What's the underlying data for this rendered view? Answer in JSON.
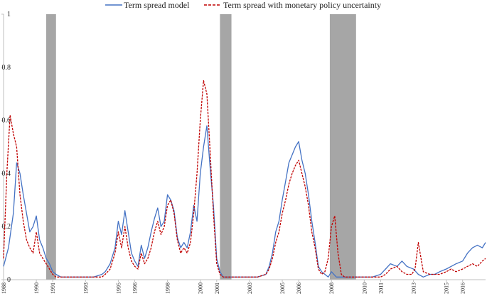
{
  "chart_data": {
    "type": "line",
    "title": "",
    "xlabel": "",
    "ylabel": "",
    "xlim": [
      1988.0,
      2017.4
    ],
    "ylim": [
      0,
      1
    ],
    "y_ticks": [
      {
        "value": 0,
        "label": "0"
      },
      {
        "value": 0.2,
        "label": "0.2"
      },
      {
        "value": 0.4,
        "label": "0.4"
      },
      {
        "value": 0.6,
        "label": "0.6"
      },
      {
        "value": 0.8,
        "label": "0.8"
      },
      {
        "value": 1,
        "label": "1"
      }
    ],
    "x_ticks": [
      {
        "value": 1988.0,
        "label": "1988"
      },
      {
        "value": 1990.0,
        "label": "1990"
      },
      {
        "value": 1991.0,
        "label": "1991"
      },
      {
        "value": 1993.0,
        "label": "1993"
      },
      {
        "value": 1995.0,
        "label": "1995"
      },
      {
        "value": 1996.0,
        "label": "1996"
      },
      {
        "value": 1998.0,
        "label": "1998"
      },
      {
        "value": 2000.0,
        "label": "2000"
      },
      {
        "value": 2001.0,
        "label": "2001"
      },
      {
        "value": 2003.0,
        "label": "2003"
      },
      {
        "value": 2005.0,
        "label": "2005"
      },
      {
        "value": 2006.0,
        "label": "2006"
      },
      {
        "value": 2008.0,
        "label": "2008"
      },
      {
        "value": 2010.0,
        "label": "2010"
      },
      {
        "value": 2011.0,
        "label": "2011"
      },
      {
        "value": 2013.0,
        "label": "2013"
      },
      {
        "value": 2015.0,
        "label": "2015"
      },
      {
        "value": 2016.0,
        "label": "2016"
      }
    ],
    "recessions": [
      {
        "start": 1990.6,
        "end": 1991.2
      },
      {
        "start": 2001.2,
        "end": 2001.9
      },
      {
        "start": 2007.9,
        "end": 2009.5
      }
    ],
    "legend_position": "top",
    "grid": false,
    "series": [
      {
        "name": "Term spread model",
        "color": "#4472C4",
        "style": "solid",
        "x": [
          1988.0,
          1988.3,
          1988.6,
          1988.8,
          1989.0,
          1989.2,
          1989.4,
          1989.6,
          1989.8,
          1990.0,
          1990.2,
          1990.4,
          1990.6,
          1990.8,
          1991.0,
          1991.2,
          1991.5,
          1992.0,
          1992.5,
          1993.0,
          1993.5,
          1994.0,
          1994.2,
          1994.5,
          1994.8,
          1995.0,
          1995.2,
          1995.4,
          1995.6,
          1995.8,
          1996.0,
          1996.2,
          1996.4,
          1996.6,
          1996.8,
          1997.0,
          1997.2,
          1997.4,
          1997.6,
          1997.8,
          1998.0,
          1998.2,
          1998.4,
          1998.6,
          1998.8,
          1999.0,
          1999.2,
          1999.4,
          1999.6,
          1999.8,
          2000.0,
          2000.2,
          2000.4,
          2000.6,
          2000.8,
          2001.0,
          2001.2,
          2001.4,
          2001.6,
          2001.8,
          2002.0,
          2002.5,
          2003.0,
          2003.5,
          2004.0,
          2004.2,
          2004.4,
          2004.6,
          2004.8,
          2005.0,
          2005.2,
          2005.4,
          2005.6,
          2005.8,
          2006.0,
          2006.2,
          2006.4,
          2006.6,
          2006.8,
          2007.0,
          2007.2,
          2007.4,
          2007.6,
          2007.8,
          2008.0,
          2008.3,
          2008.6,
          2008.9,
          2009.2,
          2009.5,
          2010.0,
          2010.5,
          2011.0,
          2011.3,
          2011.6,
          2012.0,
          2012.3,
          2012.6,
          2013.0,
          2013.3,
          2013.6,
          2014.0,
          2014.3,
          2014.6,
          2015.0,
          2015.3,
          2015.6,
          2016.0,
          2016.3,
          2016.6,
          2016.9,
          2017.2,
          2017.4
        ],
        "y": [
          0.05,
          0.12,
          0.25,
          0.44,
          0.4,
          0.32,
          0.25,
          0.18,
          0.2,
          0.24,
          0.15,
          0.12,
          0.08,
          0.06,
          0.03,
          0.02,
          0.01,
          0.01,
          0.01,
          0.01,
          0.01,
          0.02,
          0.03,
          0.06,
          0.12,
          0.22,
          0.17,
          0.26,
          0.18,
          0.1,
          0.07,
          0.05,
          0.13,
          0.08,
          0.12,
          0.18,
          0.23,
          0.27,
          0.2,
          0.22,
          0.32,
          0.3,
          0.26,
          0.16,
          0.12,
          0.14,
          0.12,
          0.18,
          0.28,
          0.22,
          0.4,
          0.5,
          0.58,
          0.42,
          0.28,
          0.08,
          0.03,
          0.01,
          0.01,
          0.01,
          0.01,
          0.01,
          0.01,
          0.01,
          0.02,
          0.05,
          0.1,
          0.18,
          0.22,
          0.3,
          0.37,
          0.44,
          0.47,
          0.5,
          0.52,
          0.45,
          0.4,
          0.32,
          0.22,
          0.14,
          0.05,
          0.03,
          0.02,
          0.01,
          0.03,
          0.01,
          0.01,
          0.01,
          0.01,
          0.01,
          0.01,
          0.01,
          0.02,
          0.04,
          0.06,
          0.05,
          0.07,
          0.05,
          0.04,
          0.02,
          0.01,
          0.02,
          0.02,
          0.03,
          0.04,
          0.05,
          0.06,
          0.07,
          0.1,
          0.12,
          0.13,
          0.12,
          0.14
        ]
      },
      {
        "name": "Term spread with monetary policy uncertainty",
        "color": "#C00000",
        "style": "dashed",
        "x": [
          1988.0,
          1988.2,
          1988.4,
          1988.6,
          1988.8,
          1989.0,
          1989.2,
          1989.4,
          1989.6,
          1989.8,
          1990.0,
          1990.2,
          1990.4,
          1990.6,
          1990.8,
          1991.0,
          1991.2,
          1991.5,
          1992.0,
          1992.5,
          1993.0,
          1993.5,
          1994.0,
          1994.2,
          1994.5,
          1994.8,
          1995.0,
          1995.2,
          1995.4,
          1995.6,
          1995.8,
          1996.0,
          1996.2,
          1996.4,
          1996.6,
          1996.8,
          1997.0,
          1997.2,
          1997.4,
          1997.6,
          1997.8,
          1998.0,
          1998.2,
          1998.4,
          1998.6,
          1998.8,
          1999.0,
          1999.2,
          1999.4,
          1999.6,
          1999.8,
          2000.0,
          2000.2,
          2000.4,
          2000.6,
          2000.8,
          2001.0,
          2001.2,
          2001.4,
          2001.6,
          2001.8,
          2002.0,
          2002.5,
          2003.0,
          2003.5,
          2004.0,
          2004.2,
          2004.4,
          2004.6,
          2004.8,
          2005.0,
          2005.2,
          2005.4,
          2005.6,
          2005.8,
          2006.0,
          2006.2,
          2006.4,
          2006.6,
          2006.8,
          2007.0,
          2007.2,
          2007.4,
          2007.6,
          2007.8,
          2008.0,
          2008.2,
          2008.4,
          2008.6,
          2008.8,
          2009.0,
          2009.2,
          2009.5,
          2010.0,
          2010.5,
          2011.0,
          2011.3,
          2011.6,
          2012.0,
          2012.3,
          2012.6,
          2012.9,
          2013.1,
          2013.3,
          2013.6,
          2014.0,
          2014.3,
          2014.6,
          2015.0,
          2015.3,
          2015.6,
          2016.0,
          2016.3,
          2016.6,
          2016.9,
          2017.2,
          2017.4
        ],
        "y": [
          0.08,
          0.4,
          0.62,
          0.55,
          0.5,
          0.32,
          0.22,
          0.15,
          0.12,
          0.1,
          0.18,
          0.1,
          0.08,
          0.06,
          0.04,
          0.02,
          0.01,
          0.01,
          0.01,
          0.01,
          0.01,
          0.01,
          0.01,
          0.02,
          0.04,
          0.1,
          0.18,
          0.12,
          0.2,
          0.12,
          0.07,
          0.05,
          0.04,
          0.1,
          0.06,
          0.08,
          0.12,
          0.18,
          0.22,
          0.17,
          0.2,
          0.28,
          0.3,
          0.25,
          0.15,
          0.1,
          0.12,
          0.1,
          0.14,
          0.25,
          0.4,
          0.6,
          0.75,
          0.7,
          0.48,
          0.25,
          0.06,
          0.02,
          0.01,
          0.01,
          0.01,
          0.01,
          0.01,
          0.01,
          0.01,
          0.02,
          0.04,
          0.08,
          0.14,
          0.18,
          0.25,
          0.3,
          0.36,
          0.4,
          0.43,
          0.45,
          0.4,
          0.35,
          0.28,
          0.18,
          0.12,
          0.04,
          0.02,
          0.03,
          0.08,
          0.2,
          0.24,
          0.1,
          0.02,
          0.01,
          0.01,
          0.01,
          0.01,
          0.01,
          0.01,
          0.01,
          0.02,
          0.04,
          0.05,
          0.03,
          0.02,
          0.02,
          0.04,
          0.14,
          0.03,
          0.02,
          0.02,
          0.02,
          0.03,
          0.04,
          0.03,
          0.04,
          0.05,
          0.06,
          0.05,
          0.07,
          0.08
        ]
      }
    ]
  }
}
